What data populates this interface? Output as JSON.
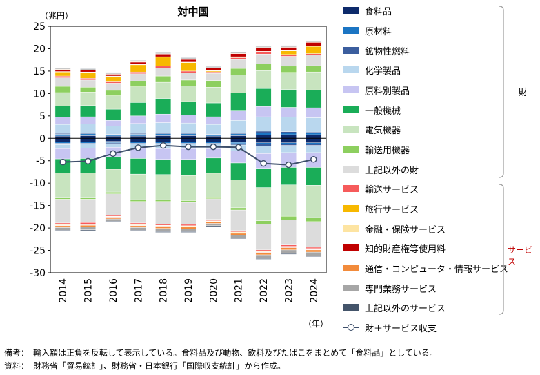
{
  "chart_data": {
    "type": "bar",
    "title": "対中国",
    "ylabel": "（兆円）",
    "xlabel": "（年）",
    "ylim": [
      -30,
      25
    ],
    "yticks": [
      25,
      20,
      15,
      10,
      5,
      0,
      -5,
      -10,
      -15,
      -20,
      -25,
      -30
    ],
    "categories": [
      "2014",
      "2015",
      "2016",
      "2017",
      "2018",
      "2019",
      "2020",
      "2021",
      "2022",
      "2023",
      "2024"
    ],
    "series": [
      {
        "name": "食料品",
        "color": "#0d2a6b",
        "values": [
          0.5,
          0.6,
          0.5,
          0.5,
          0.6,
          0.6,
          0.5,
          0.6,
          0.7,
          0.8,
          0.8
        ]
      },
      {
        "name": "原材料",
        "color": "#1b75c3",
        "values": [
          0.4,
          0.4,
          0.3,
          0.4,
          0.4,
          0.4,
          0.3,
          0.4,
          0.5,
          0.4,
          0.4
        ]
      },
      {
        "name": "鉱物性燃料",
        "color": "#3b5e9e",
        "values": [
          0.2,
          0.2,
          0.1,
          0.2,
          0.2,
          0.2,
          0.1,
          0.2,
          0.4,
          0.3,
          0.2
        ]
      },
      {
        "name": "化学製品",
        "color": "#b9d7ee",
        "values": [
          2.0,
          2.0,
          1.8,
          2.2,
          2.3,
          2.2,
          2.2,
          2.8,
          3.2,
          3.2,
          3.2
        ]
      },
      {
        "name": "原料別製品",
        "color": "#c7c5f2",
        "values": [
          1.6,
          1.6,
          1.3,
          1.7,
          1.9,
          1.8,
          1.7,
          2.1,
          2.3,
          2.2,
          2.2
        ]
      },
      {
        "name": "一般機械",
        "color": "#1aad58",
        "values": [
          2.5,
          2.5,
          2.5,
          3.0,
          3.5,
          3.0,
          3.1,
          4.0,
          4.0,
          4.0,
          4.0
        ]
      },
      {
        "name": "電気機器",
        "color": "#c8e4bf",
        "values": [
          3.0,
          3.0,
          3.0,
          3.5,
          3.6,
          3.5,
          3.5,
          4.0,
          4.0,
          3.8,
          4.0
        ]
      },
      {
        "name": "輸送用機器",
        "color": "#8dcf5f",
        "values": [
          1.4,
          1.1,
          1.2,
          1.3,
          1.4,
          1.3,
          1.5,
          1.5,
          1.5,
          1.4,
          1.4
        ]
      },
      {
        "name": "上記以外の財",
        "color": "#dcdcdc",
        "values": [
          1.9,
          1.6,
          1.6,
          1.6,
          1.8,
          1.6,
          1.6,
          2.0,
          2.2,
          2.2,
          2.4
        ]
      },
      {
        "name": "輸送サービス",
        "color": "#f65b5b",
        "values": [
          0.4,
          0.4,
          0.3,
          0.4,
          0.4,
          0.4,
          0.3,
          0.4,
          0.4,
          0.4,
          0.3
        ]
      },
      {
        "name": "旅行サービス",
        "color": "#f7b800",
        "values": [
          0.9,
          1.3,
          1.2,
          1.6,
          2.0,
          1.9,
          0.2,
          0.1,
          0.1,
          0.8,
          1.6
        ]
      },
      {
        "name": "金融・保険サービス",
        "color": "#fde4a2",
        "values": [
          0.1,
          0.1,
          0.1,
          0.1,
          0.1,
          0.1,
          0.1,
          0.1,
          0.1,
          0.1,
          0.1
        ]
      },
      {
        "name": "知的財産権等使用料",
        "color": "#c00000",
        "values": [
          0.4,
          0.4,
          0.4,
          0.5,
          0.6,
          0.6,
          0.6,
          0.7,
          0.8,
          0.7,
          0.8
        ]
      },
      {
        "name": "通信・コンピュータ・情報サービス",
        "color": "#f28b3b",
        "values": [
          0.1,
          0.1,
          0.1,
          0.1,
          0.1,
          0.1,
          0.1,
          0.1,
          0.1,
          0.1,
          0.1
        ]
      },
      {
        "name": "専門業務サービス",
        "color": "#a6a6a6",
        "values": [
          0.2,
          0.2,
          0.2,
          0.2,
          0.2,
          0.2,
          0.2,
          0.2,
          0.2,
          0.2,
          0.2
        ]
      },
      {
        "name": "上記以外のサービス",
        "color": "#44546a",
        "values": [
          0.1,
          0.1,
          0.1,
          0.1,
          0.1,
          0.1,
          0.1,
          0.1,
          0.1,
          0.1,
          0.1
        ]
      }
    ],
    "imports": [
      {
        "name": "食料品",
        "color": "#0d2a6b",
        "values": [
          -0.8,
          -0.8,
          -0.7,
          -0.8,
          -0.8,
          -0.8,
          -0.8,
          -0.9,
          -1.0,
          -1.0,
          -1.0
        ]
      },
      {
        "name": "原材料",
        "color": "#1b75c3",
        "values": [
          -0.3,
          -0.3,
          -0.3,
          -0.3,
          -0.3,
          -0.3,
          -0.3,
          -0.3,
          -0.3,
          -0.3,
          -0.3
        ]
      },
      {
        "name": "鉱物性燃料",
        "color": "#3b5e9e",
        "values": [
          -0.3,
          -0.2,
          -0.2,
          -0.2,
          -0.2,
          -0.2,
          -0.2,
          -0.3,
          -0.4,
          -0.3,
          -0.3
        ]
      },
      {
        "name": "化学製品",
        "color": "#b9d7ee",
        "values": [
          -0.9,
          -0.9,
          -0.8,
          -0.9,
          -1.0,
          -1.0,
          -1.0,
          -1.3,
          -1.7,
          -1.6,
          -1.6
        ]
      },
      {
        "name": "原料別製品",
        "color": "#c7c5f2",
        "values": [
          -2.3,
          -2.3,
          -2.1,
          -2.3,
          -2.4,
          -2.4,
          -2.1,
          -2.7,
          -3.3,
          -3.3,
          -3.3
        ]
      },
      {
        "name": "一般機械",
        "color": "#1aad58",
        "values": [
          -3.1,
          -3.2,
          -2.8,
          -3.5,
          -3.4,
          -3.6,
          -3.4,
          -3.8,
          -4.3,
          -3.9,
          -4.0
        ]
      },
      {
        "name": "電気機器",
        "color": "#c8e4bf",
        "values": [
          -5.5,
          -5.5,
          -5.1,
          -5.7,
          -5.6,
          -5.6,
          -5.3,
          -6.2,
          -7.4,
          -7.0,
          -7.2
        ]
      },
      {
        "name": "輸送用機器",
        "color": "#8dcf5f",
        "values": [
          -0.4,
          -0.4,
          -0.4,
          -0.4,
          -0.4,
          -0.4,
          -0.4,
          -0.5,
          -0.7,
          -0.8,
          -0.9
        ]
      },
      {
        "name": "上記以外の財",
        "color": "#dcdcdc",
        "values": [
          -5.3,
          -5.2,
          -4.8,
          -4.8,
          -5.0,
          -4.9,
          -4.6,
          -4.6,
          -5.8,
          -5.6,
          -5.7
        ]
      },
      {
        "name": "輸送サービス",
        "color": "#f65b5b",
        "values": [
          -0.3,
          -0.3,
          -0.2,
          -0.3,
          -0.3,
          -0.3,
          -0.3,
          -0.3,
          -0.3,
          -0.3,
          -0.3
        ]
      },
      {
        "name": "旅行サービス",
        "color": "#f7b800",
        "values": [
          -0.1,
          -0.1,
          -0.1,
          -0.1,
          -0.1,
          -0.1,
          -0.1,
          -0.1,
          -0.1,
          -0.1,
          -0.1
        ]
      },
      {
        "name": "金融・保険サービス",
        "color": "#fde4a2",
        "values": [
          -0.1,
          -0.1,
          -0.1,
          -0.1,
          -0.1,
          -0.1,
          -0.1,
          -0.1,
          -0.1,
          -0.1,
          -0.1
        ]
      },
      {
        "name": "知的財産権等使用料",
        "color": "#c00000",
        "values": [
          -0.1,
          -0.1,
          -0.1,
          -0.1,
          -0.1,
          -0.1,
          -0.1,
          -0.1,
          -0.1,
          -0.1,
          -0.1
        ]
      },
      {
        "name": "通信・コンピュータ・情報サービス",
        "color": "#f28b3b",
        "values": [
          -0.4,
          -0.4,
          -0.3,
          -0.4,
          -0.4,
          -0.4,
          -0.3,
          -0.4,
          -0.5,
          -0.5,
          -0.5
        ]
      },
      {
        "name": "専門業務サービス",
        "color": "#a6a6a6",
        "values": [
          -0.6,
          -0.6,
          -0.5,
          -0.6,
          -0.7,
          -0.6,
          -0.5,
          -0.6,
          -0.8,
          -0.8,
          -0.8
        ]
      },
      {
        "name": "上記以外のサービス",
        "color": "#44546a",
        "values": [
          -0.2,
          -0.2,
          -0.2,
          -0.2,
          -0.2,
          -0.2,
          -0.2,
          -0.2,
          -0.2,
          -0.2,
          -0.2
        ]
      }
    ],
    "line": {
      "name": "財＋サービス収支",
      "color": "#3e4f6b",
      "values": [
        -5.3,
        -5.1,
        -3.4,
        -2.1,
        -1.6,
        -1.9,
        -1.9,
        -2.0,
        -5.6,
        -5.9,
        -4.7
      ]
    }
  },
  "legend": {
    "items": [
      "食料品",
      "原材料",
      "鉱物性燃料",
      "化学製品",
      "原料別製品",
      "一般機械",
      "電気機器",
      "輸送用機器",
      "上記以外の財",
      "輸送サービス",
      "旅行サービス",
      "金融・保険サービス",
      "知的財産権等使用料",
      "通信・コンピュータ・情報サービス",
      "専門業務サービス",
      "上記以外のサービス"
    ],
    "line_label": "財＋サービス収支",
    "group_goods": "財",
    "group_services": "サービス",
    "group_services_color": "#c00000"
  },
  "notes": {
    "note1": "備考：　輸入額は正負を反転して表示している。食料品及び動物、飲料及びたばこをまとめて「食料品」としている。",
    "note2": "資料：　財務省「貿易統計」、財務省・日本銀行「国際収支統計」から作成。"
  }
}
